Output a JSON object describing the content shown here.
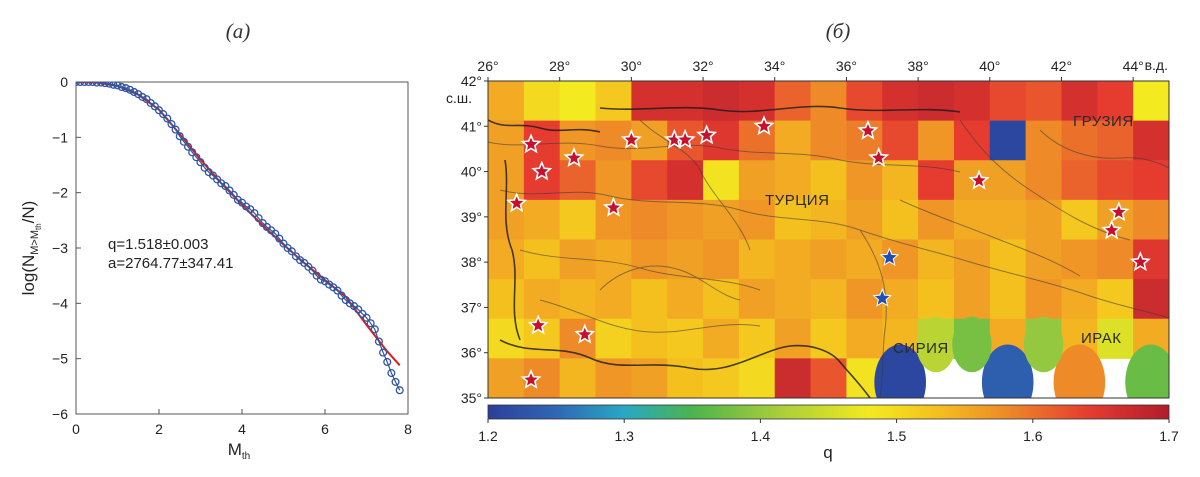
{
  "panels": {
    "a_label": "(а)",
    "b_label": "(б)"
  },
  "chart_data": [
    {
      "type": "scatter",
      "panel": "а",
      "xlabel_main": "M",
      "xlabel_sub": "th",
      "ylabel_parts": [
        "log(N",
        "M>M",
        "th",
        "/N)"
      ],
      "xlim": [
        0,
        8
      ],
      "ylim": [
        -6,
        0
      ],
      "xticks": [
        0,
        2,
        4,
        6,
        8
      ],
      "yticks": [
        0,
        -1,
        -2,
        -3,
        -4,
        -5,
        -6
      ],
      "xtick_labels": [
        "0",
        "2",
        "4",
        "6",
        "8"
      ],
      "ytick_labels": [
        "0",
        "−1",
        "−2",
        "−3",
        "−4",
        "−5",
        "−6"
      ],
      "annotation_q": "q=1.518±0.003",
      "annotation_a": "a=2764.77±347.41",
      "q": 1.518,
      "a": 2764.77,
      "colors": {
        "points": "#2f56a0",
        "fit": "#e01b1b"
      },
      "points_x": [
        0.0,
        0.1,
        0.2,
        0.3,
        0.4,
        0.5,
        0.6,
        0.7,
        0.8,
        0.9,
        1.0,
        1.1,
        1.2,
        1.3,
        1.4,
        1.5,
        1.6,
        1.7,
        1.8,
        1.9,
        2.0,
        2.1,
        2.2,
        2.3,
        2.4,
        2.5,
        2.6,
        2.7,
        2.8,
        2.9,
        3.0,
        3.1,
        3.2,
        3.3,
        3.4,
        3.5,
        3.6,
        3.7,
        3.8,
        3.9,
        4.0,
        4.1,
        4.2,
        4.3,
        4.4,
        4.5,
        4.6,
        4.7,
        4.8,
        4.9,
        5.0,
        5.1,
        5.2,
        5.3,
        5.4,
        5.5,
        5.6,
        5.7,
        5.8,
        5.9,
        6.0,
        6.1,
        6.2,
        6.3,
        6.4,
        6.5,
        6.6,
        6.7,
        6.8,
        6.9,
        7.0,
        7.1,
        7.2,
        7.3,
        7.4,
        7.5,
        7.6,
        7.7,
        7.8
      ],
      "points_y": [
        0.0,
        0.0,
        0.0,
        0.0,
        0.0,
        -0.01,
        -0.01,
        -0.02,
        -0.03,
        -0.05,
        -0.06,
        -0.09,
        -0.11,
        -0.14,
        -0.18,
        -0.22,
        -0.27,
        -0.31,
        -0.38,
        -0.44,
        -0.51,
        -0.58,
        -0.66,
        -0.76,
        -0.86,
        -0.98,
        -1.08,
        -1.17,
        -1.27,
        -1.36,
        -1.45,
        -1.55,
        -1.63,
        -1.69,
        -1.76,
        -1.83,
        -1.88,
        -1.96,
        -2.04,
        -2.13,
        -2.18,
        -2.25,
        -2.3,
        -2.37,
        -2.46,
        -2.55,
        -2.62,
        -2.68,
        -2.74,
        -2.83,
        -2.92,
        -3.0,
        -3.06,
        -3.15,
        -3.22,
        -3.27,
        -3.34,
        -3.41,
        -3.5,
        -3.57,
        -3.6,
        -3.66,
        -3.71,
        -3.77,
        -3.86,
        -3.94,
        -4.0,
        -4.05,
        -4.11,
        -4.19,
        -4.26,
        -4.36,
        -4.47,
        -4.69,
        -4.89,
        -5.06,
        -5.26,
        -5.42,
        -5.57
      ],
      "fit_x": [
        0,
        0.5,
        1.0,
        1.5,
        2.0,
        2.5,
        3.0,
        3.5,
        4.0,
        4.5,
        5.0,
        5.5,
        6.0,
        6.5,
        7.0,
        7.5,
        7.8
      ],
      "fit_y": [
        0.0,
        -0.01,
        -0.07,
        -0.23,
        -0.5,
        -0.94,
        -1.4,
        -1.83,
        -2.22,
        -2.59,
        -2.94,
        -3.27,
        -3.58,
        -3.88,
        -4.39,
        -4.87,
        -5.12
      ]
    },
    {
      "type": "heatmap",
      "panel": "б",
      "x_range": [
        26,
        45
      ],
      "y_range": [
        35,
        42
      ],
      "lon_ticks": [
        26,
        28,
        30,
        32,
        34,
        36,
        38,
        40,
        42,
        44
      ],
      "lon_tick_labels": [
        "26°",
        "28°",
        "30°",
        "32°",
        "34°",
        "36°",
        "38°",
        "40°",
        "42°",
        "44°"
      ],
      "lon_unit": "в.д.",
      "lat_ticks": [
        35,
        36,
        37,
        38,
        39,
        40,
        41,
        42
      ],
      "lat_tick_labels": [
        "35°",
        "36°",
        "37°",
        "38°",
        "39°",
        "40°",
        "41°",
        "42°"
      ],
      "lat_unit": "с.ш.",
      "colorbar": {
        "label": "q",
        "range": [
          1.2,
          1.7
        ],
        "ticks": [
          1.2,
          1.3,
          1.4,
          1.5,
          1.6,
          1.7
        ],
        "tick_labels": [
          "1.2",
          "1.3",
          "1.4",
          "1.5",
          "1.6",
          "1.7"
        ]
      },
      "country_labels": [
        "ТУРЦИЯ",
        "ГРУЗИЯ",
        "СИРИЯ",
        "ИРАК"
      ],
      "grid_cell_deg": 1,
      "q_grid_rows_north_to_south": [
        [
          1.55,
          1.5,
          1.48,
          1.52,
          1.66,
          1.66,
          1.67,
          1.66,
          1.61,
          1.58,
          1.63,
          1.66,
          1.67,
          1.66,
          1.63,
          1.62,
          1.66,
          1.64,
          1.48
        ],
        [
          1.56,
          1.64,
          1.57,
          1.58,
          1.56,
          1.62,
          1.65,
          1.6,
          1.55,
          1.58,
          1.59,
          1.63,
          1.57,
          1.64,
          1.21,
          1.58,
          1.6,
          1.61,
          1.66
        ],
        [
          1.56,
          1.64,
          1.61,
          1.57,
          1.63,
          1.66,
          1.49,
          1.56,
          1.55,
          1.53,
          1.57,
          1.54,
          1.64,
          1.56,
          1.56,
          1.58,
          1.61,
          1.63,
          1.64
        ],
        [
          1.56,
          1.55,
          1.52,
          1.57,
          1.58,
          1.57,
          1.56,
          1.57,
          1.53,
          1.54,
          1.56,
          1.53,
          1.57,
          1.55,
          1.55,
          1.56,
          1.52,
          1.56,
          1.58
        ],
        [
          1.55,
          1.53,
          1.56,
          1.55,
          1.57,
          1.56,
          1.57,
          1.54,
          1.55,
          1.56,
          1.55,
          1.57,
          1.54,
          1.56,
          1.53,
          1.56,
          1.57,
          1.58,
          1.65
        ],
        [
          1.53,
          1.55,
          1.54,
          1.55,
          1.53,
          1.55,
          1.53,
          1.56,
          1.55,
          1.54,
          1.57,
          1.55,
          1.53,
          1.56,
          1.53,
          1.57,
          1.55,
          1.52,
          1.67
        ],
        [
          1.5,
          1.52,
          1.58,
          1.51,
          1.53,
          1.52,
          1.55,
          1.52,
          1.56,
          1.52,
          1.55,
          1.54,
          1.43,
          1.38,
          1.55,
          1.4,
          1.54,
          1.46,
          1.55
        ],
        [
          1.56,
          1.58,
          1.54,
          1.57,
          1.56,
          1.53,
          1.52,
          1.5,
          1.67,
          1.62,
          1.49,
          1.21,
          null,
          null,
          1.24,
          null,
          1.58,
          null,
          1.37
        ]
      ],
      "markers": [
        {
          "type": "star-red",
          "lon": 26.8,
          "lat": 39.3
        },
        {
          "type": "star-red",
          "lon": 27.2,
          "lat": 40.6
        },
        {
          "type": "star-red",
          "lon": 27.5,
          "lat": 40.0
        },
        {
          "type": "star-red",
          "lon": 28.4,
          "lat": 40.3
        },
        {
          "type": "star-red",
          "lon": 29.5,
          "lat": 39.2
        },
        {
          "type": "star-red",
          "lon": 30.0,
          "lat": 40.7
        },
        {
          "type": "star-red",
          "lon": 31.2,
          "lat": 40.7
        },
        {
          "type": "star-red",
          "lon": 31.5,
          "lat": 40.7
        },
        {
          "type": "star-red",
          "lon": 32.1,
          "lat": 40.8
        },
        {
          "type": "star-red",
          "lon": 33.7,
          "lat": 41.0
        },
        {
          "type": "star-red",
          "lon": 36.6,
          "lat": 40.9
        },
        {
          "type": "star-red",
          "lon": 36.9,
          "lat": 40.3
        },
        {
          "type": "star-red",
          "lon": 39.7,
          "lat": 39.8
        },
        {
          "type": "star-red",
          "lon": 43.6,
          "lat": 39.1
        },
        {
          "type": "star-red",
          "lon": 43.4,
          "lat": 38.7
        },
        {
          "type": "star-red",
          "lon": 44.2,
          "lat": 38.0
        },
        {
          "type": "star-red",
          "lon": 27.4,
          "lat": 36.6
        },
        {
          "type": "star-red",
          "lon": 28.7,
          "lat": 36.4
        },
        {
          "type": "star-red",
          "lon": 27.2,
          "lat": 35.4
        },
        {
          "type": "star-blue",
          "lon": 37.2,
          "lat": 38.1
        },
        {
          "type": "star-blue",
          "lon": 37.0,
          "lat": 37.2
        }
      ]
    }
  ]
}
